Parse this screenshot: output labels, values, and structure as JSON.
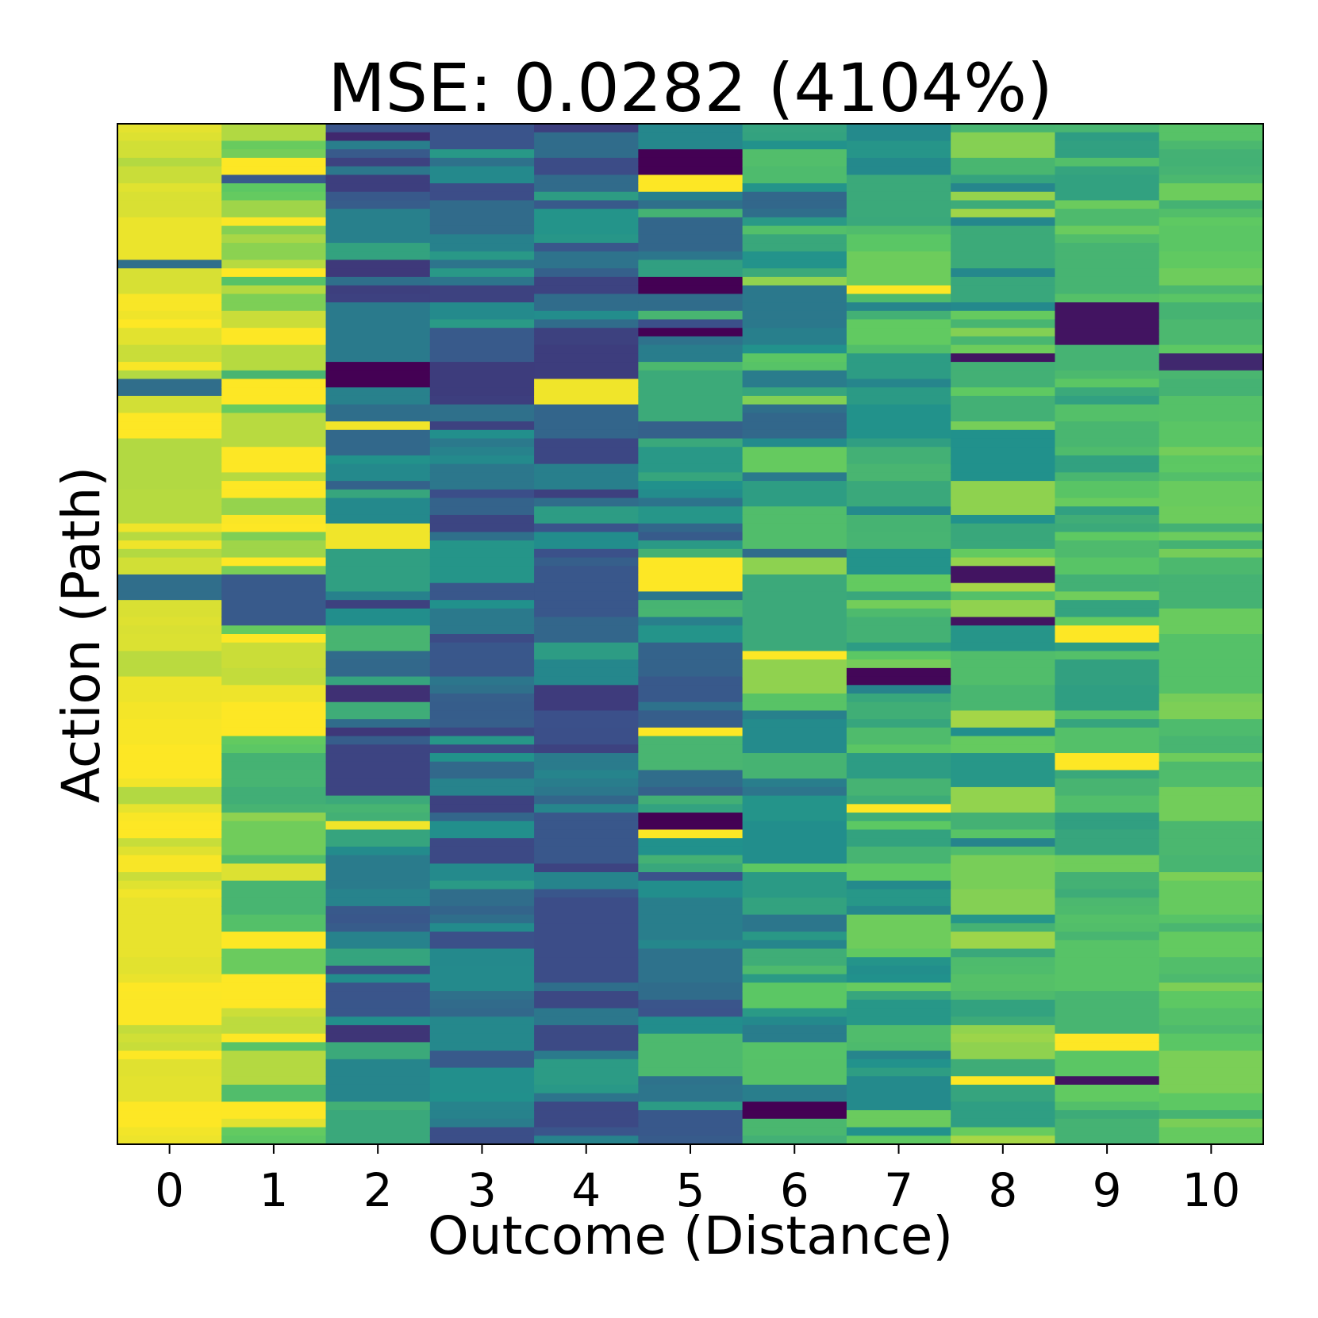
{
  "chart_data": {
    "type": "heatmap",
    "title": "MSE: 0.0282 (4104%)",
    "xlabel": "Outcome (Distance)",
    "ylabel": "Action (Path)",
    "x_ticks": [
      "0",
      "1",
      "2",
      "3",
      "4",
      "5",
      "6",
      "7",
      "8",
      "9",
      "10"
    ],
    "y_ticks": [],
    "colormap": "viridis",
    "value_range": [
      0,
      1
    ],
    "rows": 120,
    "column_profiles": [
      {
        "column": "0",
        "mean": 0.96,
        "spread": 0.08
      },
      {
        "column": "1",
        "mean": 0.88,
        "spread": 0.25
      },
      {
        "column": "2",
        "mean": 0.38,
        "spread": 0.28
      },
      {
        "column": "3",
        "mean": 0.36,
        "spread": 0.18
      },
      {
        "column": "4",
        "mean": 0.38,
        "spread": 0.2
      },
      {
        "column": "5",
        "mean": 0.46,
        "spread": 0.22
      },
      {
        "column": "6",
        "mean": 0.58,
        "spread": 0.25
      },
      {
        "column": "7",
        "mean": 0.62,
        "spread": 0.18
      },
      {
        "column": "8",
        "mean": 0.66,
        "spread": 0.22
      },
      {
        "column": "9",
        "mean": 0.66,
        "spread": 0.12
      },
      {
        "column": "10",
        "mean": 0.72,
        "spread": 0.08
      }
    ]
  },
  "colors": {
    "viridis": [
      "#440154",
      "#3b528b",
      "#21918c",
      "#5ec962",
      "#fde725"
    ]
  }
}
